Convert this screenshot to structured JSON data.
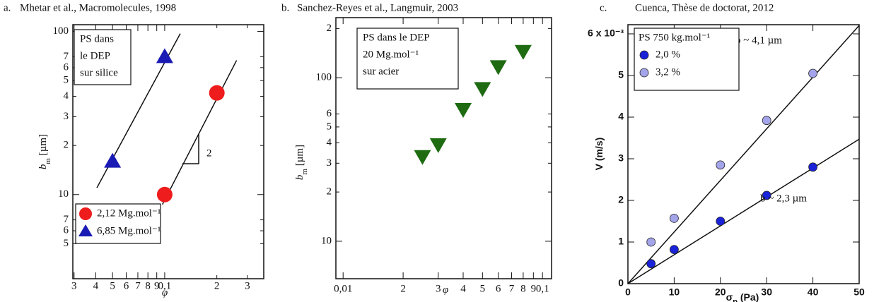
{
  "chart_data": [
    {
      "type": "scatter",
      "panel": "a.",
      "title": "Mhetar et al., Macromolecules, 1998",
      "xlabel": "φ",
      "ylabel": "b",
      "ylabel_sub": "m",
      "ylabel_unit": " [µm]",
      "xlog": true,
      "ylog": true,
      "xlim": [
        0.0295,
        0.373
      ],
      "ylim": [
        3.05,
        110
      ],
      "xticks": [
        {
          "value": 0.03,
          "label": "3"
        },
        {
          "value": 0.04,
          "label": "4"
        },
        {
          "value": 0.05,
          "label": "5"
        },
        {
          "value": 0.06,
          "label": "6"
        },
        {
          "value": 0.07,
          "label": "7"
        },
        {
          "value": 0.08,
          "label": "8"
        },
        {
          "value": 0.09,
          "label": "9"
        },
        {
          "value": 0.1,
          "label": "0,1"
        },
        {
          "value": 0.2,
          "label": "2"
        },
        {
          "value": 0.3,
          "label": "3"
        }
      ],
      "yticks": [
        {
          "value": 5,
          "label": "5"
        },
        {
          "value": 6,
          "label": "6"
        },
        {
          "value": 7,
          "label": "7"
        },
        10,
        {
          "value": 20,
          "label": "2"
        },
        {
          "value": 30,
          "label": "3"
        },
        {
          "value": 40,
          "label": "4"
        },
        {
          "value": 50,
          "label": "5"
        },
        {
          "value": 60,
          "label": "6"
        },
        {
          "value": 70,
          "label": "7"
        },
        100
      ],
      "legend": "lower left",
      "series": [
        {
          "name": "2,12 Mg.mol⁻¹",
          "color": "#ee1c1c",
          "marker": "circle",
          "x": [
            0.1,
            0.2
          ],
          "values": [
            10,
            42
          ]
        },
        {
          "name": "6,85 Mg.mol⁻¹",
          "color": "#1a1ab4",
          "marker": "triangle",
          "x": [
            0.05,
            0.1
          ],
          "values": [
            16,
            70
          ]
        }
      ],
      "lines": [
        {
          "x": [
            0.0406,
            0.123
          ],
          "values": [
            11,
            97
          ]
        },
        {
          "x": [
            0.097,
            0.26
          ],
          "values": [
            8.7,
            66.5
          ]
        }
      ],
      "annotations": [
        [
          "PS dans",
          "le DEP",
          "sur silice"
        ],
        [
          "2"
        ]
      ]
    },
    {
      "type": "scatter",
      "panel": "b.",
      "title": "Sanchez-Reyes et al., Langmuir, 2003",
      "xlabel": "φ",
      "ylabel": "b",
      "ylabel_sub": "m",
      "ylabel_unit": " [µm]",
      "xlog": true,
      "ylog": true,
      "xlim": [
        0.0092,
        0.111
      ],
      "ylim": [
        5.9,
        233
      ],
      "xticks": [
        {
          "value": 0.01,
          "label": "0,01"
        },
        {
          "value": 0.02,
          "label": "2"
        },
        {
          "value": 0.03,
          "label": "3"
        },
        {
          "value": 0.04,
          "label": "4"
        },
        {
          "value": 0.05,
          "label": "5"
        },
        {
          "value": 0.06,
          "label": "6"
        },
        {
          "value": 0.07,
          "label": "7"
        },
        {
          "value": 0.08,
          "label": "8"
        },
        {
          "value": 0.09,
          "label": "9"
        },
        {
          "value": 0.1,
          "label": "0,1"
        }
      ],
      "yticks": [
        10,
        {
          "value": 20,
          "label": "2"
        },
        {
          "value": 30,
          "label": "3"
        },
        {
          "value": 40,
          "label": "4"
        },
        {
          "value": 50,
          "label": "5"
        },
        {
          "value": 60,
          "label": "6"
        },
        100,
        {
          "value": 200,
          "label": "2"
        }
      ],
      "series": [
        {
          "color": "#1e6b12",
          "marker": "triangle-down",
          "x": [
            0.025,
            0.03,
            0.04,
            0.05,
            0.06,
            0.08
          ],
          "values": [
            33,
            39,
            64,
            86,
            117,
            145
          ]
        }
      ],
      "annotations": [
        [
          "PS dans le DEP",
          "20 Mg.mol⁻¹",
          "sur acier"
        ]
      ]
    },
    {
      "type": "scatter",
      "panel": "c.",
      "title": "Cuenca, Thèse de doctorat, 2012",
      "xlabel": "σ",
      "xlabel_sub": "p",
      "xlabel_unit": " (Pa)",
      "ylabel": "V   (m/s)",
      "xlim": [
        0,
        50
      ],
      "ylim": [
        0,
        6.22
      ],
      "xticks": [
        0,
        10,
        20,
        30,
        40,
        50
      ],
      "yticks": [
        0,
        1,
        2,
        3,
        4,
        5,
        {
          "value": 6,
          "label": "6 x 10⁻³"
        }
      ],
      "legend": "upper left",
      "legend_title": "PS 750 kg.mol⁻¹",
      "series": [
        {
          "name": "2,0 %",
          "color": "#1a23d8",
          "marker": "circle",
          "x": [
            5,
            10,
            20,
            30,
            40
          ],
          "values": [
            0.48,
            0.82,
            1.5,
            2.12,
            2.8
          ]
        },
        {
          "name": "3,2 %",
          "color": "#a4a4ea",
          "marker": "circle",
          "x": [
            5,
            10,
            20,
            30,
            40
          ],
          "values": [
            1.0,
            1.57,
            2.85,
            3.92,
            5.05
          ]
        }
      ],
      "lines": [
        {
          "x": [
            0,
            50
          ],
          "values": [
            0,
            6.2
          ]
        },
        {
          "x": [
            0,
            50
          ],
          "values": [
            0,
            3.47
          ]
        }
      ],
      "annotations": [
        [
          "b ~ 4,1 µm"
        ],
        [
          "b ~ 2,3 µm"
        ]
      ]
    }
  ]
}
